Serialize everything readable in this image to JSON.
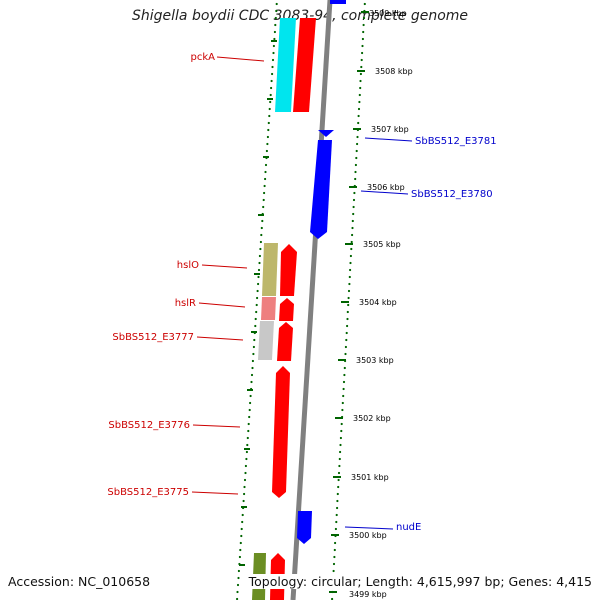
{
  "title": "Shigella boydii CDC 3083-94, complete genome",
  "footer": {
    "accession": "Accession: NC_010658",
    "summary": "Topology: circular; Length: 4,615,997 bp; Genes: 4,415"
  },
  "ticks": [
    {
      "label": "3509 kbp"
    },
    {
      "label": "3508 kbp"
    },
    {
      "label": "3507 kbp"
    },
    {
      "label": "3506 kbp"
    },
    {
      "label": "3505 kbp"
    },
    {
      "label": "3504 kbp"
    },
    {
      "label": "3503 kbp"
    },
    {
      "label": "3502 kbp"
    },
    {
      "label": "3501 kbp"
    },
    {
      "label": "3500 kbp"
    },
    {
      "label": "3499 kbp"
    }
  ],
  "genes_left": [
    {
      "label": "pckA"
    },
    {
      "label": "hslO"
    },
    {
      "label": "hslR"
    },
    {
      "label": "SbBS512_E3777"
    },
    {
      "label": "SbBS512_E3776"
    },
    {
      "label": "SbBS512_E3775"
    }
  ],
  "genes_right": [
    {
      "label": "SbBS512_E3781"
    },
    {
      "label": "SbBS512_E3780"
    },
    {
      "label": "nudE"
    }
  ],
  "colors": {
    "forward_strand": "#ff0000",
    "reverse_strand": "#0000ff",
    "cog_cyan": "#00e5ee",
    "cog_khaki": "#bdb76b",
    "cog_pink": "#ee7f7f",
    "cog_grey": "#c8c8c8",
    "cog_olive": "#6b8e23",
    "backbone": "#808080",
    "tick_marks": "#006400"
  }
}
